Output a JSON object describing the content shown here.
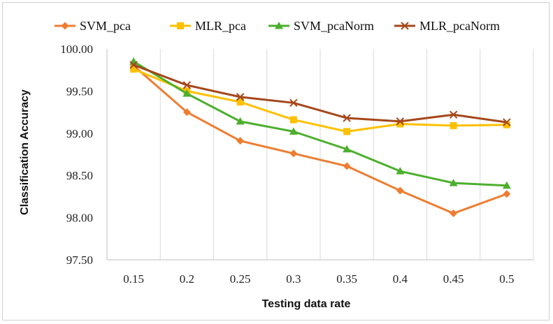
{
  "chart_data": {
    "type": "line",
    "xlabel": "Testing data rate",
    "ylabel": "Classification Accuracy",
    "categories": [
      "0.15",
      "0.2",
      "0.25",
      "0.3",
      "0.35",
      "0.4",
      "0.45",
      "0.5"
    ],
    "ylim": [
      97.5,
      100.0
    ],
    "yticks": [
      "97.50",
      "98.00",
      "98.50",
      "99.00",
      "99.50",
      "100.00"
    ],
    "grid": "vertical",
    "legend_position": "top",
    "series": [
      {
        "name": "SVM_pca",
        "color": "#ED7D31",
        "marker": "diamond",
        "values": [
          99.8,
          99.25,
          98.91,
          98.76,
          98.61,
          98.32,
          98.05,
          98.28
        ]
      },
      {
        "name": "MLR_pca",
        "color": "#FFC000",
        "marker": "square",
        "values": [
          99.76,
          99.5,
          99.37,
          99.16,
          99.02,
          99.11,
          99.09,
          99.1
        ]
      },
      {
        "name": "SVM_pcaNorm",
        "color": "#4CAF2D",
        "marker": "triangle",
        "values": [
          99.85,
          99.47,
          99.14,
          99.02,
          98.81,
          98.55,
          98.41,
          98.38
        ]
      },
      {
        "name": "MLR_pcaNorm",
        "color": "#A5471B",
        "marker": "x",
        "values": [
          99.81,
          99.57,
          99.43,
          99.36,
          99.18,
          99.14,
          99.22,
          99.13
        ]
      }
    ]
  }
}
